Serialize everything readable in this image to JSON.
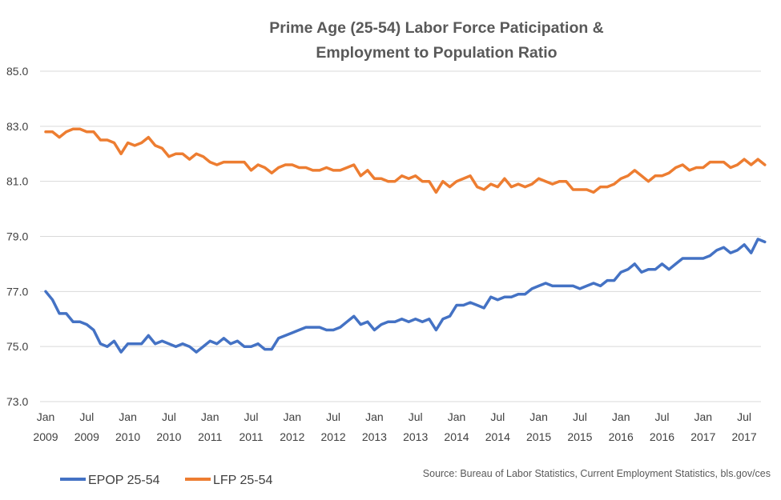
{
  "chart_data": {
    "type": "line",
    "title_lines": [
      "Prime Age (25-54) Labor Force Paticipation  &",
      "Employment to Population  Ratio"
    ],
    "xlabel": "",
    "ylabel": "",
    "ylim": [
      73.0,
      85.0
    ],
    "y_ticks": [
      "85.0",
      "83.0",
      "81.0",
      "79.0",
      "77.0",
      "75.0",
      "73.0"
    ],
    "y_tick_values": [
      85,
      83,
      81,
      79,
      77,
      75,
      73
    ],
    "x_start": "2009-01",
    "x_tick_labels": [
      {
        "month": "Jan",
        "year": "2009",
        "index": 0
      },
      {
        "month": "Jul",
        "year": "2009",
        "index": 6
      },
      {
        "month": "Jan",
        "year": "2010",
        "index": 12
      },
      {
        "month": "Jul",
        "year": "2010",
        "index": 18
      },
      {
        "month": "Jan",
        "year": "2011",
        "index": 24
      },
      {
        "month": "Jul",
        "year": "2011",
        "index": 30
      },
      {
        "month": "Jan",
        "year": "2012",
        "index": 36
      },
      {
        "month": "Jul",
        "year": "2012",
        "index": 42
      },
      {
        "month": "Jan",
        "year": "2013",
        "index": 48
      },
      {
        "month": "Jul",
        "year": "2013",
        "index": 54
      },
      {
        "month": "Jan",
        "year": "2014",
        "index": 60
      },
      {
        "month": "Jul",
        "year": "2014",
        "index": 66
      },
      {
        "month": "Jan",
        "year": "2015",
        "index": 72
      },
      {
        "month": "Jul",
        "year": "2015",
        "index": 78
      },
      {
        "month": "Jan",
        "year": "2016",
        "index": 84
      },
      {
        "month": "Jul",
        "year": "2016",
        "index": 90
      },
      {
        "month": "Jan",
        "year": "2017",
        "index": 96
      },
      {
        "month": "Jul",
        "year": "2017",
        "index": 102
      }
    ],
    "grid": true,
    "legend_position": "bottom-left",
    "series": [
      {
        "name": "EPOP 25-54",
        "color": "#4472C4",
        "values": [
          77.0,
          76.7,
          76.2,
          76.2,
          75.9,
          75.9,
          75.8,
          75.6,
          75.1,
          75.0,
          75.2,
          74.8,
          75.1,
          75.1,
          75.1,
          75.4,
          75.1,
          75.2,
          75.1,
          75.0,
          75.1,
          75.0,
          74.8,
          75.0,
          75.2,
          75.1,
          75.3,
          75.1,
          75.2,
          75.0,
          75.0,
          75.1,
          74.9,
          74.9,
          75.3,
          75.4,
          75.5,
          75.6,
          75.7,
          75.7,
          75.7,
          75.6,
          75.6,
          75.7,
          75.9,
          76.1,
          75.8,
          75.9,
          75.6,
          75.8,
          75.9,
          75.9,
          76.0,
          75.9,
          76.0,
          75.9,
          76.0,
          75.6,
          76.0,
          76.1,
          76.5,
          76.5,
          76.6,
          76.5,
          76.4,
          76.8,
          76.7,
          76.8,
          76.8,
          76.9,
          76.9,
          77.1,
          77.2,
          77.3,
          77.2,
          77.2,
          77.2,
          77.2,
          77.1,
          77.2,
          77.3,
          77.2,
          77.4,
          77.4,
          77.7,
          77.8,
          78.0,
          77.7,
          77.8,
          77.8,
          78.0,
          77.8,
          78.0,
          78.2,
          78.2,
          78.2,
          78.2,
          78.3,
          78.5,
          78.6,
          78.4,
          78.5,
          78.7,
          78.4,
          78.9,
          78.8
        ]
      },
      {
        "name": "LFP 25-54",
        "color": "#ED7D31",
        "values": [
          82.8,
          82.8,
          82.6,
          82.8,
          82.9,
          82.9,
          82.8,
          82.8,
          82.5,
          82.5,
          82.4,
          82.0,
          82.4,
          82.3,
          82.4,
          82.6,
          82.3,
          82.2,
          81.9,
          82.0,
          82.0,
          81.8,
          82.0,
          81.9,
          81.7,
          81.6,
          81.7,
          81.7,
          81.7,
          81.7,
          81.4,
          81.6,
          81.5,
          81.3,
          81.5,
          81.6,
          81.6,
          81.5,
          81.5,
          81.4,
          81.4,
          81.5,
          81.4,
          81.4,
          81.5,
          81.6,
          81.2,
          81.4,
          81.1,
          81.1,
          81.0,
          81.0,
          81.2,
          81.1,
          81.2,
          81.0,
          81.0,
          80.6,
          81.0,
          80.8,
          81.0,
          81.1,
          81.2,
          80.8,
          80.7,
          80.9,
          80.8,
          81.1,
          80.8,
          80.9,
          80.8,
          80.9,
          81.1,
          81.0,
          80.9,
          81.0,
          81.0,
          80.7,
          80.7,
          80.7,
          80.6,
          80.8,
          80.8,
          80.9,
          81.1,
          81.2,
          81.4,
          81.2,
          81.0,
          81.2,
          81.2,
          81.3,
          81.5,
          81.6,
          81.4,
          81.5,
          81.5,
          81.7,
          81.7,
          81.7,
          81.5,
          81.6,
          81.8,
          81.6,
          81.8,
          81.6
        ]
      }
    ],
    "source": "Source:  Bureau of Labor Statistics, Current Employment  Statistics, bls.gov/ces"
  }
}
